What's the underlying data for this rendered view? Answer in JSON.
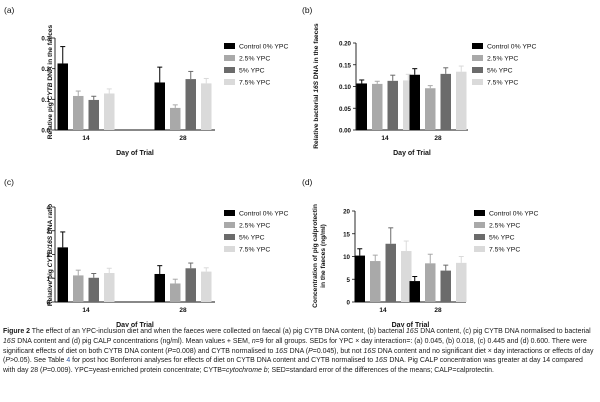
{
  "legend_labels": [
    "Control 0% YPC",
    "2.5% YPC",
    "5% YPC",
    "7.5% YPC"
  ],
  "series_colors": [
    "#000000",
    "#a9a9a9",
    "#6b6b6b",
    "#dadada"
  ],
  "chart_data": [
    {
      "panel": "(a)",
      "type": "bar",
      "title": "",
      "xlabel": "Day of Trial",
      "ylabel": "Relative pig CYTB DNA in the faeces",
      "ylabel_italic": "CYTB",
      "categories": [
        "14",
        "28"
      ],
      "ylim": [
        0,
        0.3
      ],
      "yticks": [
        0.0,
        0.1,
        0.2,
        0.3
      ],
      "ytick_labels": [
        "0.0",
        "0.1",
        "0.2",
        "0.3"
      ],
      "series": [
        {
          "name": "Control 0% YPC",
          "values": [
            0.217,
            0.155
          ],
          "errors": [
            0.055,
            0.05
          ]
        },
        {
          "name": "2.5% YPC",
          "values": [
            0.111,
            0.072
          ],
          "errors": [
            0.016,
            0.01
          ]
        },
        {
          "name": "5% YPC",
          "values": [
            0.098,
            0.166
          ],
          "errors": [
            0.012,
            0.025
          ]
        },
        {
          "name": "7.5% YPC",
          "values": [
            0.119,
            0.152
          ],
          "errors": [
            0.015,
            0.016
          ]
        }
      ]
    },
    {
      "panel": "(b)",
      "type": "bar",
      "title": "",
      "xlabel": "Day of Trial",
      "ylabel": "Relative bacterial 16S DNA in the faeces",
      "ylabel_italic": "16S",
      "categories": [
        "14",
        "28"
      ],
      "ylim": [
        0,
        0.2
      ],
      "yticks": [
        0,
        0.05,
        0.1,
        0.15,
        0.2
      ],
      "ytick_labels": [
        "0.00",
        "0.05",
        "0.10",
        "0.15",
        "0.20"
      ],
      "series": [
        {
          "name": "Control 0% YPC",
          "values": [
            0.107,
            0.127
          ],
          "errors": [
            0.008,
            0.014
          ]
        },
        {
          "name": "2.5% YPC",
          "values": [
            0.106,
            0.096
          ],
          "errors": [
            0.006,
            0.006
          ]
        },
        {
          "name": "5% YPC",
          "values": [
            0.113,
            0.129
          ],
          "errors": [
            0.013,
            0.014
          ]
        },
        {
          "name": "7.5% YPC",
          "values": [
            0.114,
            0.134
          ],
          "errors": [
            0.014,
            0.013
          ]
        }
      ]
    },
    {
      "panel": "(c)",
      "type": "bar",
      "title": "",
      "xlabel": "Day of Trial",
      "ylabel": "Relative pig CYTB/16S DNA ratio",
      "ylabel_italic": "CYTB/16S",
      "categories": [
        "14",
        "28"
      ],
      "ylim": [
        0,
        4
      ],
      "yticks": [
        0,
        1,
        2,
        3,
        4
      ],
      "ytick_labels": [
        "0",
        "1",
        "2",
        "3",
        "4"
      ],
      "series": [
        {
          "name": "Control 0% YPC",
          "values": [
            2.3,
            1.18
          ],
          "errors": [
            0.65,
            0.35
          ]
        },
        {
          "name": "2.5% YPC",
          "values": [
            1.12,
            0.78
          ],
          "errors": [
            0.22,
            0.18
          ]
        },
        {
          "name": "5% YPC",
          "values": [
            1.02,
            1.42
          ],
          "errors": [
            0.18,
            0.22
          ]
        },
        {
          "name": "7.5% YPC",
          "values": [
            1.22,
            1.28
          ],
          "errors": [
            0.2,
            0.16
          ]
        }
      ]
    },
    {
      "panel": "(d)",
      "type": "bar",
      "title": "",
      "xlabel": "Day of Trial",
      "ylabel": "Concentration of pig calprotectin in the faeces (ng/ml)",
      "ylabel_italic": "",
      "categories": [
        "14",
        "28"
      ],
      "ylim": [
        0,
        20
      ],
      "yticks": [
        0,
        5,
        10,
        15,
        20
      ],
      "ytick_labels": [
        "0",
        "5",
        "10",
        "15",
        "20"
      ],
      "series": [
        {
          "name": "Control 0% YPC",
          "values": [
            10.2,
            4.6
          ],
          "errors": [
            1.5,
            1.0
          ]
        },
        {
          "name": "2.5% YPC",
          "values": [
            9.0,
            8.5
          ],
          "errors": [
            1.3,
            2.0
          ]
        },
        {
          "name": "5% YPC",
          "values": [
            12.8,
            6.9
          ],
          "errors": [
            3.5,
            1.2
          ]
        },
        {
          "name": "7.5% YPC",
          "values": [
            11.2,
            8.6
          ],
          "errors": [
            2.2,
            1.4
          ]
        }
      ]
    }
  ],
  "caption": {
    "label": "Figure 2",
    "segments": [
      {
        "t": " The effect of an YPC-inclusion diet and when the faeces were collected on faecal (a) pig CYTB DNA content, (b) bacterial "
      },
      {
        "t": "16S",
        "i": true
      },
      {
        "t": " DNA content, (c) pig CYTB DNA normalised to bacterial "
      },
      {
        "t": "16S",
        "i": true
      },
      {
        "t": " DNA content and (d) pig CALP concentrations (ng/ml). Mean values + SEM, "
      },
      {
        "t": "n",
        "i": true
      },
      {
        "t": "=9 for all groups. SEDs for YPC × day interaction=: (a) 0.045, (b) 0.018, (c) 0.445 and (d) 0.600. There were significant effects of diet on both CYTB DNA content ("
      },
      {
        "t": "P",
        "i": true
      },
      {
        "t": "=0.008) and CYTB normalised to "
      },
      {
        "t": "16S",
        "i": true
      },
      {
        "t": " DNA ("
      },
      {
        "t": "P",
        "i": true
      },
      {
        "t": "=0.045), but not "
      },
      {
        "t": "16S",
        "i": true
      },
      {
        "t": " DNA content and no significant diet × day interactions or effects of day ("
      },
      {
        "t": "P",
        "i": true
      },
      {
        "t": ">0.05). See Table "
      },
      {
        "t": "4",
        "link": true
      },
      {
        "t": " for post hoc Bonferroni analyses for effects of diet on CYTB DNA content and CYTB normalised to "
      },
      {
        "t": "16S",
        "i": true
      },
      {
        "t": " DNA. Pig CALP concentration was greater at day 14 compared with day 28 ("
      },
      {
        "t": "P",
        "i": true
      },
      {
        "t": "=0.009). YPC=yeast-enriched protein concentrate; CYTB="
      },
      {
        "t": "cytochrome b",
        "i": true
      },
      {
        "t": "; SED=standard error of the differences of the means; CALP=calprotectin."
      }
    ]
  }
}
